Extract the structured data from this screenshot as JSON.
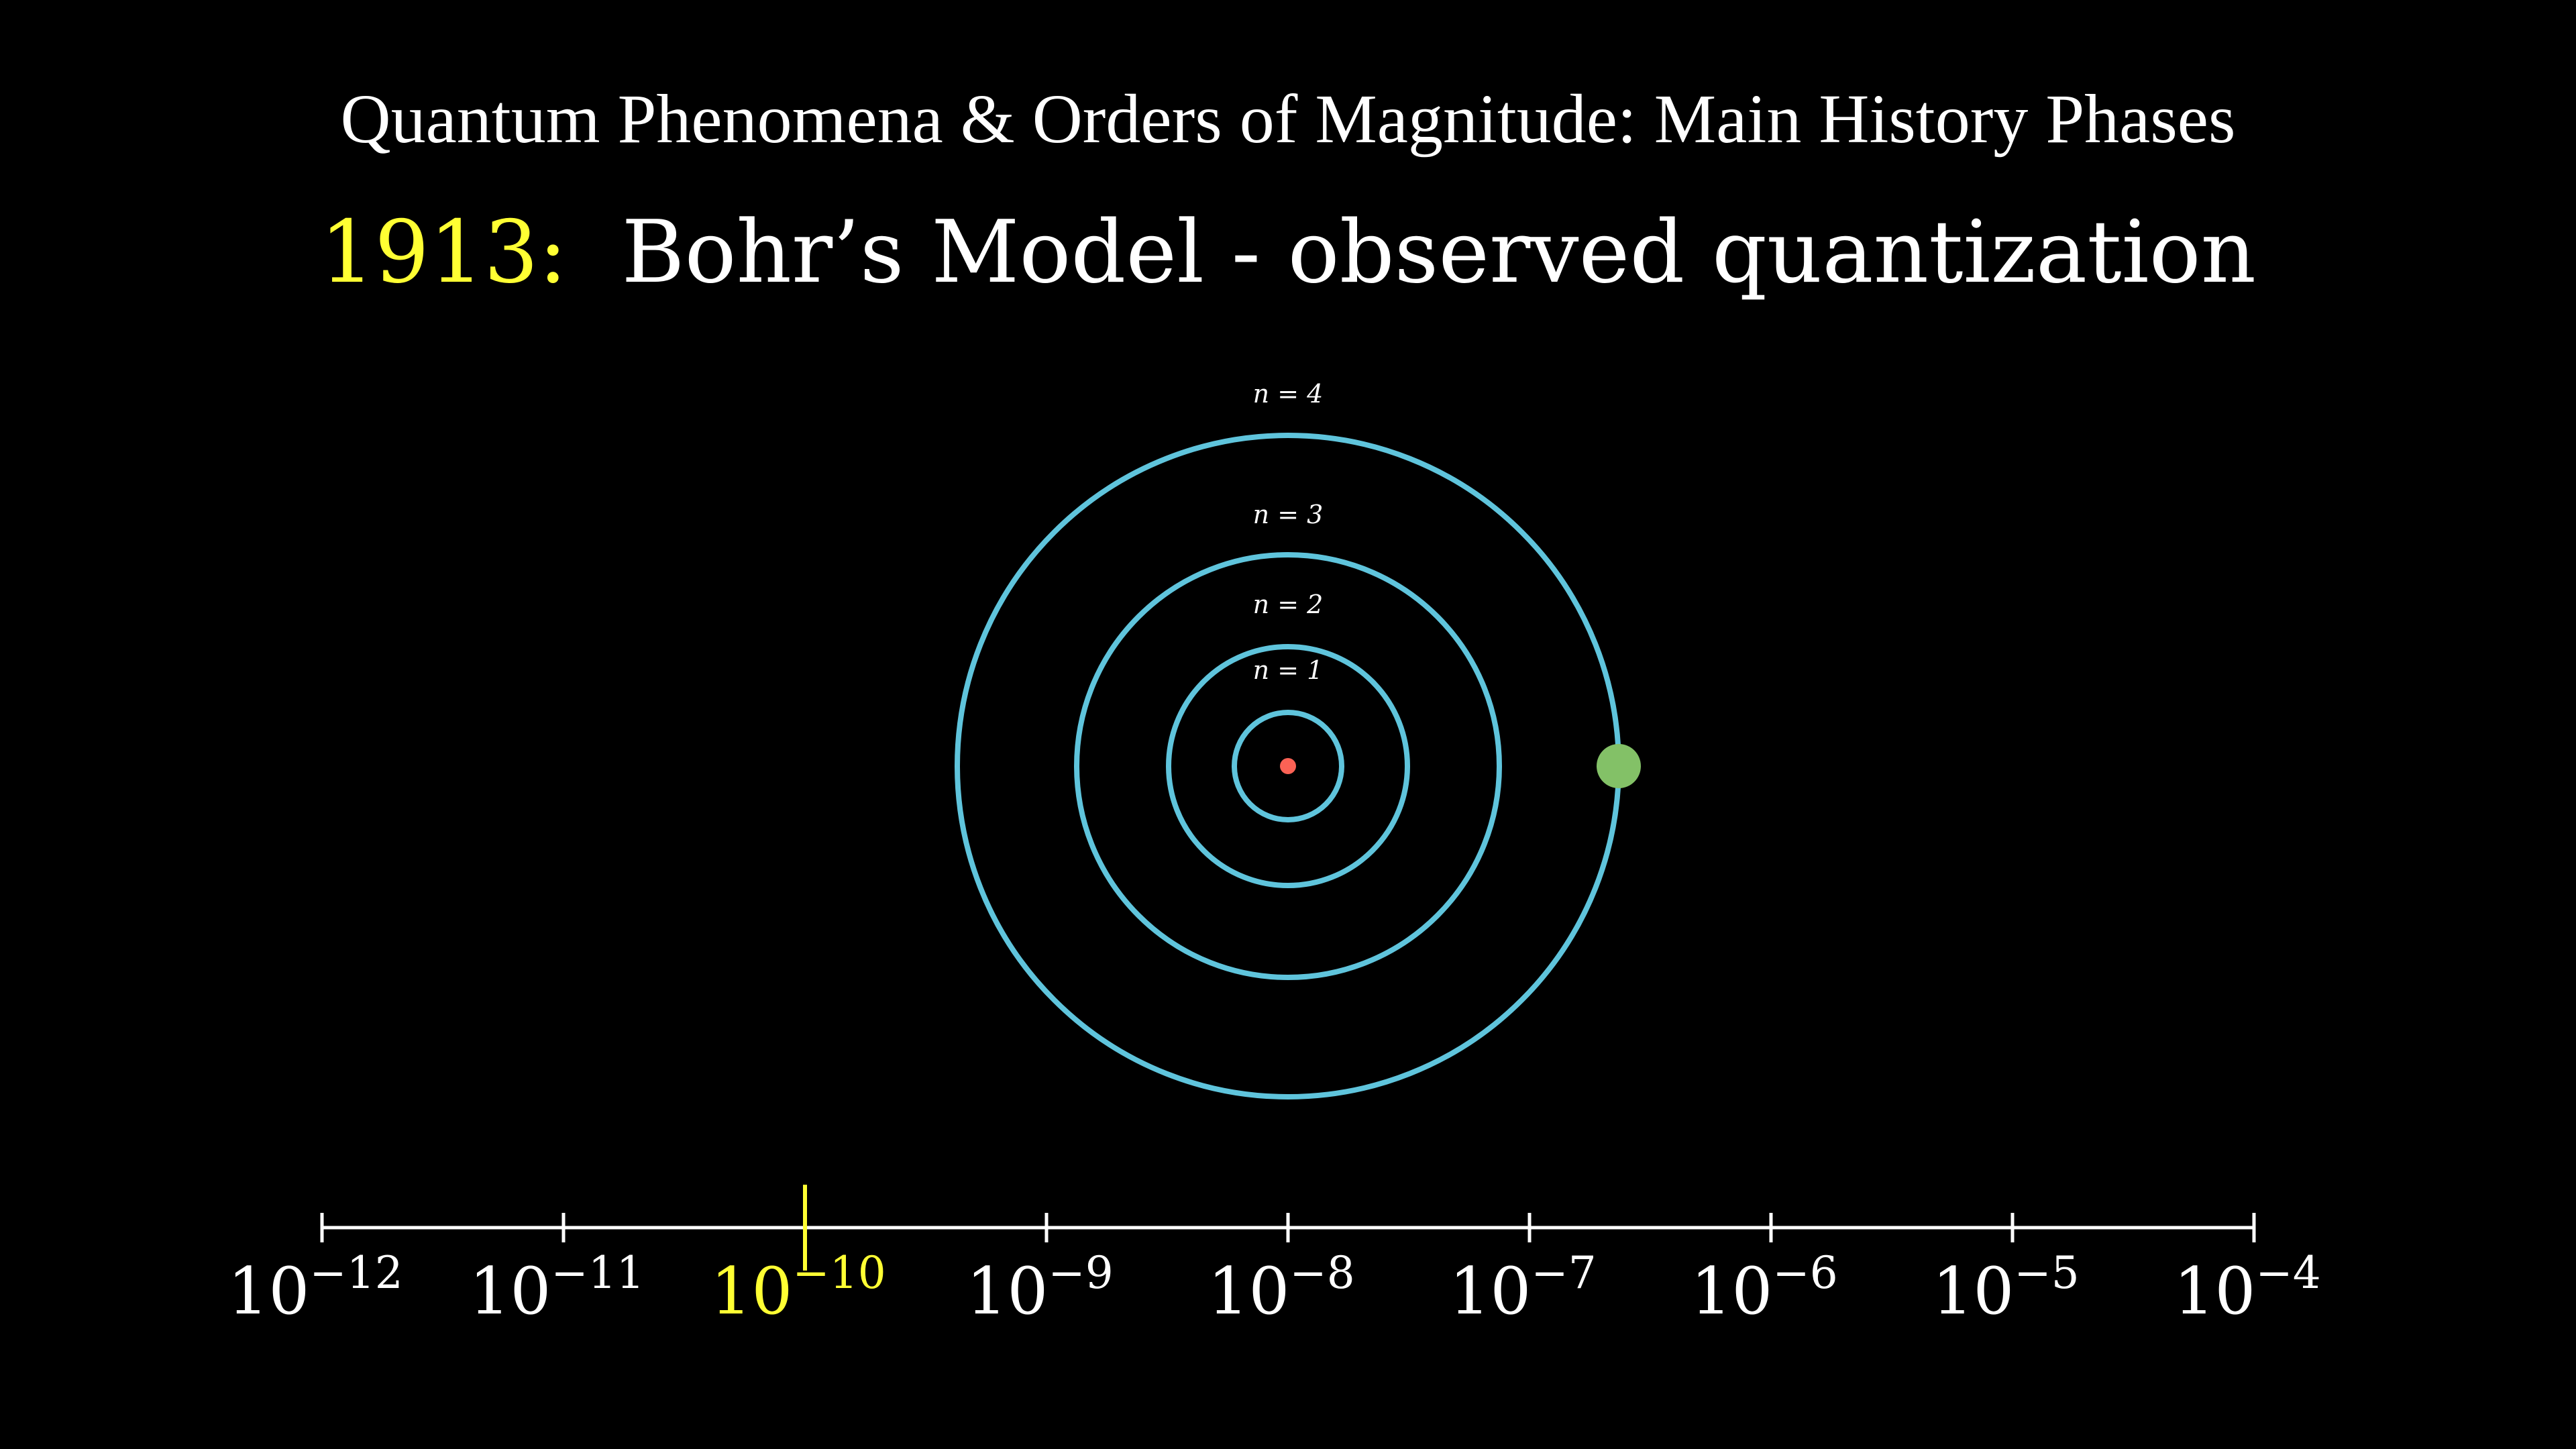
{
  "header": {
    "title": "Quantum Phenomena & Orders of Magnitude: Main History Phases",
    "year": "1913:",
    "subtitle": "Bohr’s Model - observed quantization"
  },
  "orbits": [
    {
      "n": 1,
      "label": "n = 1"
    },
    {
      "n": 2,
      "label": "n = 2"
    },
    {
      "n": 3,
      "label": "n = 3"
    },
    {
      "n": 4,
      "label": "n = 4"
    }
  ],
  "electron_on_orbit": 4,
  "scale": {
    "ticks": [
      {
        "exponent": -12,
        "base": "10",
        "sup": "−12"
      },
      {
        "exponent": -11,
        "base": "10",
        "sup": "−11"
      },
      {
        "exponent": -10,
        "base": "10",
        "sup": "−10"
      },
      {
        "exponent": -9,
        "base": "10",
        "sup": "−9"
      },
      {
        "exponent": -8,
        "base": "10",
        "sup": "−8"
      },
      {
        "exponent": -7,
        "base": "10",
        "sup": "−7"
      },
      {
        "exponent": -6,
        "base": "10",
        "sup": "−6"
      },
      {
        "exponent": -5,
        "base": "10",
        "sup": "−5"
      },
      {
        "exponent": -4,
        "base": "10",
        "sup": "−4"
      }
    ],
    "highlight_exponent": -10
  },
  "colors": {
    "background": "#000000",
    "text": "#ffffff",
    "highlight": "#ffff33",
    "orbit": "#5fc4dc",
    "nucleus": "#fc6255",
    "electron": "#83c167",
    "axis": "#ffffff"
  }
}
